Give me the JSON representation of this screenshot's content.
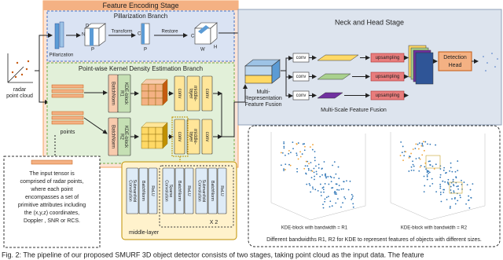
{
  "encoding_stage": {
    "title": "Feature Encoding Stage",
    "pillar_branch": {
      "title": "Pillarization Branch",
      "pillarization": "Pillarization",
      "transform": "Transform",
      "restore": "Restore",
      "dims": [
        "N",
        "D",
        "P",
        "C",
        "P",
        "C",
        "H",
        "W"
      ]
    },
    "kde_branch": {
      "title": "Point-wise Kernel Density Estimation Branch",
      "points": "points",
      "rows": [
        {
          "batchnorm": "BatchNorm",
          "kde": [
            "KDE-block",
            "R1"
          ],
          "conv1": "conv",
          "middle": [
            "middle-",
            "layer"
          ],
          "conv2": "conv"
        },
        {
          "batchnorm": "BatchNorm",
          "kde": [
            "KDE-block",
            "R2"
          ],
          "conv1": "conv",
          "middle": [
            "middle-",
            "layer"
          ],
          "conv2": "conv"
        }
      ]
    }
  },
  "input": {
    "label": [
      "radar",
      "point cloud"
    ]
  },
  "note": [
    "The input tensor is",
    "comprised of  radar points,",
    "where each point",
    "encompasses a set of",
    "primitive attributes including",
    "the (x,y,z) coordinates,",
    "Doppler , SNR or RCS."
  ],
  "neck_head": {
    "title": "Neck and Head Stage",
    "fusion": [
      "Multi-",
      "Representation",
      "Feature Fusion"
    ],
    "convs": [
      "conv",
      "conv",
      "conv"
    ],
    "upsampling": [
      "upsampling",
      "upsampling",
      "upsampling"
    ],
    "detection_head": [
      "Detection",
      "Head"
    ],
    "multiscale": "Multi-Scale Feature Fusion"
  },
  "middle_layer": {
    "label": "middle-layer",
    "blocks": [
      [
        "Submanifold",
        "Convolution"
      ],
      [
        "BatchNorm"
      ],
      [
        "ReLU"
      ],
      [
        "Sparse",
        "Convolution"
      ],
      [
        "BatchNorm"
      ],
      [
        "ReLU"
      ],
      [
        "Submanifold",
        "Convolution"
      ],
      [
        "BatchNorm"
      ],
      [
        "ReLU"
      ]
    ],
    "repeat": "X 2"
  },
  "kde_viz": {
    "panels": [
      "KDE-block with bandwidth = R1",
      "KDE-block with bandwidth = R2"
    ],
    "caption": "Different bandwidths R1, R2 for KDE to represent features of objects with different sizes."
  },
  "caption": "Fig. 2: The pipeline of our proposed SMURF 3D object detector consists of two stages, taking point cloud as the input data. The feature"
}
